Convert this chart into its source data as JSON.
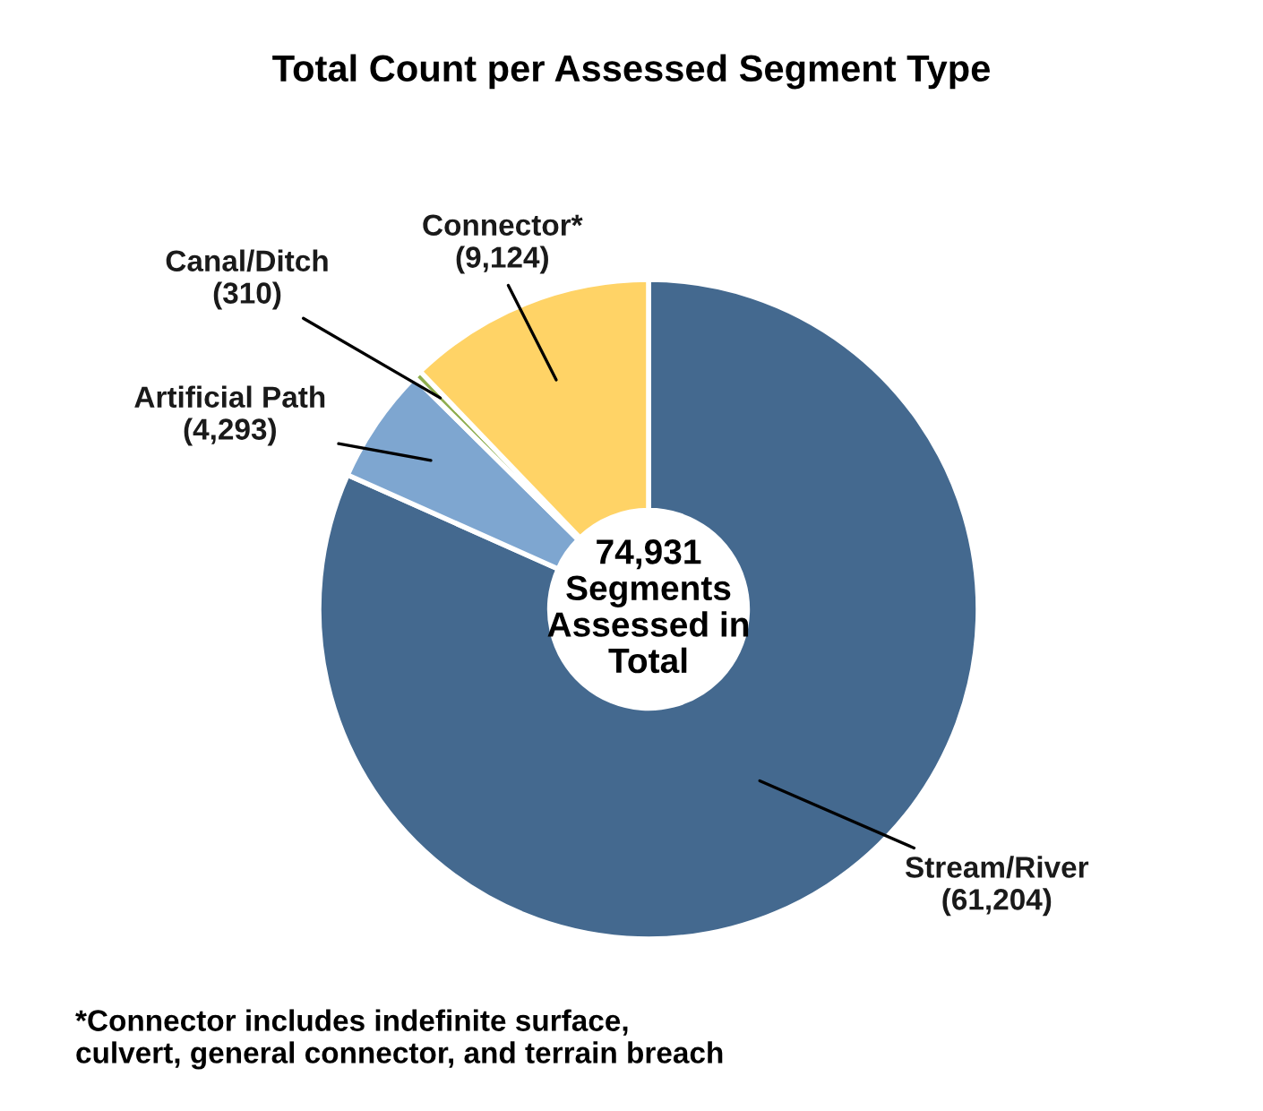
{
  "chart_data": {
    "type": "donut",
    "title": "Total Count per Assessed Segment Type",
    "categories": [
      "Stream/River",
      "Artificial Path",
      "Canal/Ditch",
      "Connector*"
    ],
    "values": [
      61204,
      4293,
      310,
      9124
    ],
    "colors": [
      "#44698f",
      "#7ea6d0",
      "#8fae4f",
      "#ffd366"
    ],
    "value_labels": [
      "(61,204)",
      "(4,293)",
      "(310)",
      "(9,124)"
    ],
    "annotations": [
      "74,931\nSegments\nAssessed in\nTotal",
      "*Connector includes indefinite surface,\nculvert, general connector, and terrain breach"
    ]
  }
}
